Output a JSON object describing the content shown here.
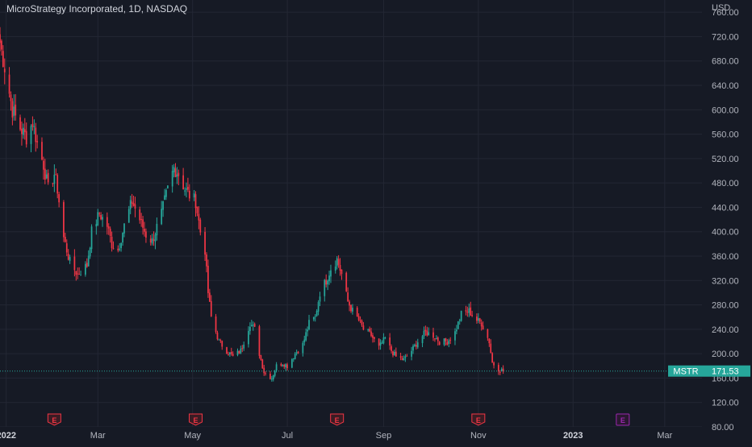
{
  "header": {
    "symbol_name": "MicroStrategy Incorporated",
    "interval": "1D",
    "exchange": "NASDAQ",
    "separator": ", "
  },
  "price_axis": {
    "currency": "USD",
    "tick_labels": [
      "760.00",
      "720.00",
      "680.00",
      "640.00",
      "600.00",
      "560.00",
      "520.00",
      "480.00",
      "440.00",
      "400.00",
      "360.00",
      "320.00",
      "280.00",
      "240.00",
      "200.00",
      "160.00",
      "120.00",
      "80.00"
    ]
  },
  "time_axis": {
    "labels": [
      {
        "text": "2022",
        "bold": true
      },
      {
        "text": "Mar",
        "bold": false
      },
      {
        "text": "May",
        "bold": false
      },
      {
        "text": "Jul",
        "bold": false
      },
      {
        "text": "Sep",
        "bold": false
      },
      {
        "text": "Nov",
        "bold": false
      },
      {
        "text": "2023",
        "bold": true
      },
      {
        "text": "Mar",
        "bold": false
      }
    ]
  },
  "last_price": {
    "ticker": "MSTR",
    "value": "171.53",
    "color": "#26a69a"
  },
  "earnings_markers": [
    {
      "label": "E",
      "date": "2022-02-01",
      "color": "#f23645",
      "upcoming": false
    },
    {
      "label": "E",
      "date": "2022-05-03",
      "color": "#f23645",
      "upcoming": false
    },
    {
      "label": "E",
      "date": "2022-08-02",
      "color": "#f23645",
      "upcoming": false
    },
    {
      "label": "E",
      "date": "2022-11-01",
      "color": "#f23645",
      "upcoming": false
    },
    {
      "label": "E",
      "date": "2023-02-02",
      "color": "#9c27b0",
      "upcoming": true
    }
  ],
  "colors": {
    "background": "#161a25",
    "grid": "#232734",
    "up": "#26a69a",
    "down": "#f23645",
    "text": "#b2b5be"
  },
  "chart_data": {
    "type": "candlestick",
    "title": "MicroStrategy Incorporated, 1D, NASDAQ",
    "xlabel": "",
    "ylabel": "",
    "ylim": [
      80,
      780
    ],
    "x_range": [
      "2021-12-28",
      "2023-03-25"
    ],
    "grid": true,
    "legend": "none",
    "series": [
      {
        "name": "MSTR",
        "anchor_points": [
          [
            "2021-12-28",
            710
          ],
          [
            "2021-12-31",
            670
          ],
          [
            "2022-01-05",
            600
          ],
          [
            "2022-01-10",
            570
          ],
          [
            "2022-01-14",
            555
          ],
          [
            "2022-01-18",
            580
          ],
          [
            "2022-01-21",
            545
          ],
          [
            "2022-01-25",
            510
          ],
          [
            "2022-01-28",
            470
          ],
          [
            "2022-02-01",
            495
          ],
          [
            "2022-02-03",
            470
          ],
          [
            "2022-02-07",
            390
          ],
          [
            "2022-02-11",
            350
          ],
          [
            "2022-02-16",
            330
          ],
          [
            "2022-02-22",
            345
          ],
          [
            "2022-02-25",
            400
          ],
          [
            "2022-03-02",
            430
          ],
          [
            "2022-03-07",
            410
          ],
          [
            "2022-03-10",
            380
          ],
          [
            "2022-03-14",
            370
          ],
          [
            "2022-03-18",
            410
          ],
          [
            "2022-03-23",
            450
          ],
          [
            "2022-03-28",
            420
          ],
          [
            "2022-04-01",
            395
          ],
          [
            "2022-04-05",
            385
          ],
          [
            "2022-04-11",
            430
          ],
          [
            "2022-04-15",
            470
          ],
          [
            "2022-04-19",
            505
          ],
          [
            "2022-04-22",
            495
          ],
          [
            "2022-04-26",
            470
          ],
          [
            "2022-04-29",
            460
          ],
          [
            "2022-05-03",
            450
          ],
          [
            "2022-05-06",
            400
          ],
          [
            "2022-05-09",
            370
          ],
          [
            "2022-05-11",
            300
          ],
          [
            "2022-05-13",
            260
          ],
          [
            "2022-05-18",
            220
          ],
          [
            "2022-05-23",
            205
          ],
          [
            "2022-05-27",
            195
          ],
          [
            "2022-06-01",
            205
          ],
          [
            "2022-06-07",
            250
          ],
          [
            "2022-06-10",
            240
          ],
          [
            "2022-06-13",
            200
          ],
          [
            "2022-06-16",
            170
          ],
          [
            "2022-06-21",
            160
          ],
          [
            "2022-06-24",
            180
          ],
          [
            "2022-06-28",
            185
          ],
          [
            "2022-07-01",
            180
          ],
          [
            "2022-07-06",
            200
          ],
          [
            "2022-07-11",
            215
          ],
          [
            "2022-07-15",
            250
          ],
          [
            "2022-07-19",
            260
          ],
          [
            "2022-07-22",
            300
          ],
          [
            "2022-07-26",
            320
          ],
          [
            "2022-07-29",
            340
          ],
          [
            "2022-08-02",
            355
          ],
          [
            "2022-08-05",
            330
          ],
          [
            "2022-08-09",
            285
          ],
          [
            "2022-08-12",
            270
          ],
          [
            "2022-08-16",
            255
          ],
          [
            "2022-08-19",
            240
          ],
          [
            "2022-08-24",
            230
          ],
          [
            "2022-08-29",
            210
          ],
          [
            "2022-09-02",
            225
          ],
          [
            "2022-09-06",
            205
          ],
          [
            "2022-09-09",
            195
          ],
          [
            "2022-09-14",
            190
          ],
          [
            "2022-09-19",
            205
          ],
          [
            "2022-09-23",
            220
          ],
          [
            "2022-09-28",
            235
          ],
          [
            "2022-10-03",
            230
          ],
          [
            "2022-10-07",
            220
          ],
          [
            "2022-10-12",
            220
          ],
          [
            "2022-10-17",
            235
          ],
          [
            "2022-10-21",
            265
          ],
          [
            "2022-10-26",
            270
          ],
          [
            "2022-10-31",
            255
          ],
          [
            "2022-11-03",
            250
          ],
          [
            "2022-11-08",
            220
          ],
          [
            "2022-11-10",
            185
          ],
          [
            "2022-11-14",
            175
          ],
          [
            "2022-11-17",
            171.53
          ]
        ]
      }
    ]
  }
}
